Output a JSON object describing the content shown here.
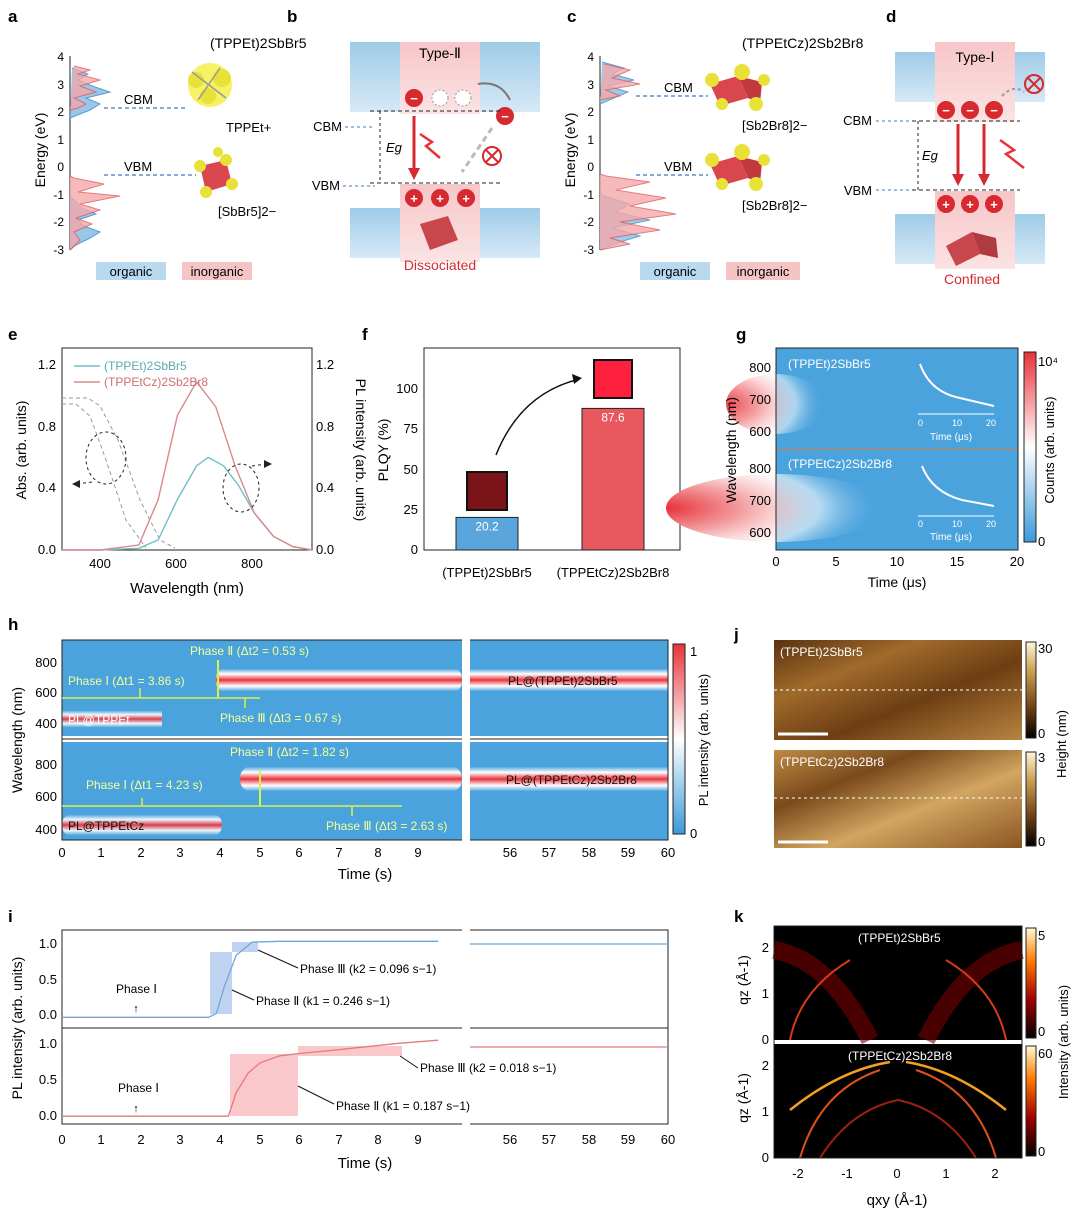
{
  "panels": {
    "a": {
      "letter": "a",
      "title": "(TPPEt)2SbBr5",
      "ylabel": "Energy (eV)",
      "ticks": [
        "4",
        "3",
        "2",
        "1",
        "0",
        "-1",
        "-2",
        "-3"
      ],
      "cbm": "CBM",
      "vbm": "VBM",
      "cation": "TPPEt+",
      "anion": "[SbBr5]2−",
      "legend_organic": "organic",
      "legend_inorganic": "inorganic"
    },
    "b": {
      "letter": "b",
      "type": "Type-Ⅱ",
      "cbm": "CBM",
      "vbm": "VBM",
      "eg": "Eg",
      "bottom": "Dissociated"
    },
    "c": {
      "letter": "c",
      "title": "(TPPEtCz)2Sb2Br8",
      "ylabel": "Energy (eV)",
      "ticks": [
        "4",
        "3",
        "2",
        "1",
        "0",
        "-1",
        "-2",
        "-3"
      ],
      "cbm": "CBM",
      "vbm": "VBM",
      "anion_top": "[Sb2Br8]2−",
      "anion_bottom": "[Sb2Br8]2−",
      "legend_organic": "organic",
      "legend_inorganic": "inorganic"
    },
    "d": {
      "letter": "d",
      "type": "Type-Ⅰ",
      "cbm": "CBM",
      "vbm": "VBM",
      "eg": "Eg",
      "bottom": "Confined"
    },
    "e": {
      "letter": "e",
      "xlabel": "Wavelength (nm)",
      "ylabel_left": "Abs. (arb. units)",
      "ylabel_right": "PL intensity (arb. units)",
      "xticks": [
        "400",
        "600",
        "800"
      ],
      "yticks": [
        "0.0",
        "0.4",
        "0.8",
        "1.2"
      ],
      "legend": [
        "(TPPEt)2SbBr5",
        "(TPPEtCz)2Sb2Br8"
      ]
    },
    "f": {
      "letter": "f",
      "ylabel": "PLQY (%)",
      "yticks": [
        "0",
        "25",
        "50",
        "75",
        "100"
      ],
      "categories": [
        "(TPPEt)2SbBr5",
        "(TPPEtCz)2Sb2Br8"
      ],
      "values": [
        "20.2",
        "87.6"
      ]
    },
    "g": {
      "letter": "g",
      "xlabel": "Time (μs)",
      "ylabel": "Wavelength (nm)",
      "cbar_label": "Counts (arb. units)",
      "cbar_top": "10⁴",
      "cbar_bottom": "0",
      "xticks": [
        "0",
        "5",
        "10",
        "15",
        "20"
      ],
      "yticks": [
        "800",
        "700",
        "600"
      ],
      "top_label": "(TPPEt)2SbBr5",
      "bottom_label": "(TPPEtCz)2Sb2Br8",
      "inset_xlabel": "Time (μs)",
      "inset_ticks": [
        "0",
        "10",
        "20"
      ]
    },
    "h": {
      "letter": "h",
      "xlabel": "Time (s)",
      "ylabel": "Wavelength (nm)",
      "cbar_label": "PL intensity (arb. units)",
      "cbar_top": "1",
      "cbar_bottom": "0",
      "xticks_left": [
        "0",
        "1",
        "2",
        "3",
        "4",
        "5",
        "6",
        "7",
        "8",
        "9"
      ],
      "xticks_right": [
        "56",
        "57",
        "58",
        "59",
        "60"
      ],
      "yticks": [
        "800",
        "600",
        "400"
      ],
      "top": {
        "phase1": "Phase Ⅰ (Δt1 = 3.86 s)",
        "phase2": "Phase Ⅱ (Δt2 = 0.53 s)",
        "phase3": "Phase Ⅲ (Δt3 = 0.67 s)",
        "pl_left": "PL@TPPEt",
        "pl_right": "PL@(TPPEt)2SbBr5"
      },
      "bottom": {
        "phase1": "Phase Ⅰ (Δt1 = 4.23 s)",
        "phase2": "Phase Ⅱ (Δt2 = 1.82 s)",
        "phase3": "Phase Ⅲ (Δt3 = 2.63 s)",
        "pl_left": "PL@TPPEtCz",
        "pl_right": "PL@(TPPEtCz)2Sb2Br8"
      }
    },
    "i": {
      "letter": "i",
      "xlabel": "Time (s)",
      "ylabel": "PL intensity (arb. units)",
      "yticks": [
        "0.0",
        "0.5",
        "1.0"
      ],
      "xticks_left": [
        "0",
        "1",
        "2",
        "3",
        "4",
        "5",
        "6",
        "7",
        "8",
        "9"
      ],
      "xticks_right": [
        "56",
        "57",
        "58",
        "59",
        "60"
      ],
      "top": {
        "phase1": "Phase Ⅰ",
        "phase2": "Phase Ⅱ (k1 = 0.246 s−1)",
        "phase3": "Phase Ⅲ (k2 = 0.096 s−1)"
      },
      "bottom": {
        "phase1": "Phase Ⅰ",
        "phase2": "Phase Ⅱ (k1 = 0.187 s−1)",
        "phase3": "Phase Ⅲ (k2 = 0.018 s−1)"
      }
    },
    "j": {
      "letter": "j",
      "top_label": "(TPPEt)2SbBr5",
      "bottom_label": "(TPPEtCz)2Sb2Br8",
      "cbar_label": "Height (nm)",
      "top_max": "30",
      "top_min": "0",
      "bottom_max": "3",
      "bottom_min": "0"
    },
    "k": {
      "letter": "k",
      "xlabel": "qxy (Å-1)",
      "ylabel": "qz (Å-1)",
      "cbar_label": "Intensity (arb. units)",
      "top_label": "(TPPEt)2SbBr5",
      "bottom_label": "(TPPEtCz)2Sb2Br8",
      "top_max": "5",
      "top_min": "0",
      "bottom_max": "60",
      "bottom_min": "0",
      "xticks": [
        "-2",
        "-1",
        "0",
        "1",
        "2"
      ],
      "yticks": [
        "2",
        "1",
        "0"
      ]
    }
  },
  "chart_data": [
    {
      "panel": "e",
      "type": "line",
      "xlabel": "Wavelength (nm)",
      "ylabel": "Abs. (arb. units)",
      "xlim": [
        300,
        950
      ],
      "ylim": [
        0,
        1.2
      ],
      "series": [
        {
          "name": "(TPPEt)2SbBr5",
          "x": [
            300,
            400,
            500,
            550,
            600,
            650,
            680,
            720,
            760,
            800,
            850,
            900,
            950
          ],
          "y": [
            0,
            0,
            0.01,
            0.06,
            0.3,
            0.5,
            0.55,
            0.5,
            0.38,
            0.22,
            0.08,
            0.02,
            0
          ]
        },
        {
          "name": "(TPPEtCz)2Sb2Br8",
          "x": [
            300,
            400,
            500,
            550,
            600,
            650,
            700,
            750,
            800,
            850,
            900,
            950
          ],
          "y": [
            0,
            0,
            0.03,
            0.3,
            0.8,
            1.0,
            0.85,
            0.5,
            0.22,
            0.08,
            0.02,
            0
          ]
        }
      ]
    },
    {
      "panel": "f",
      "type": "bar",
      "categories": [
        "(TPPEt)2SbBr5",
        "(TPPEtCz)2Sb2Br8"
      ],
      "values": [
        20.2,
        87.6
      ],
      "ylabel": "PLQY (%)",
      "ylim": [
        0,
        125
      ]
    },
    {
      "panel": "i",
      "type": "line",
      "xlabel": "Time (s)",
      "ylabel": "PL intensity (arb. units)",
      "ylim": [
        -0.1,
        1.1
      ],
      "series": [
        {
          "name": "(TPPEt)2SbBr5",
          "x": [
            0,
            3.7,
            3.9,
            4.1,
            4.4,
            4.8,
            5.5,
            9.5
          ],
          "y": [
            0,
            0,
            0.05,
            0.4,
            0.8,
            0.97,
            0.98,
            0.98
          ]
        },
        {
          "name": "(TPPEtCz)2Sb2Br8",
          "x": [
            0,
            4.2,
            4.4,
            4.7,
            5,
            5.5,
            6,
            7,
            8.5,
            9.5
          ],
          "y": [
            0,
            0,
            0.3,
            0.55,
            0.68,
            0.77,
            0.8,
            0.85,
            0.93,
            0.97
          ]
        }
      ]
    }
  ]
}
